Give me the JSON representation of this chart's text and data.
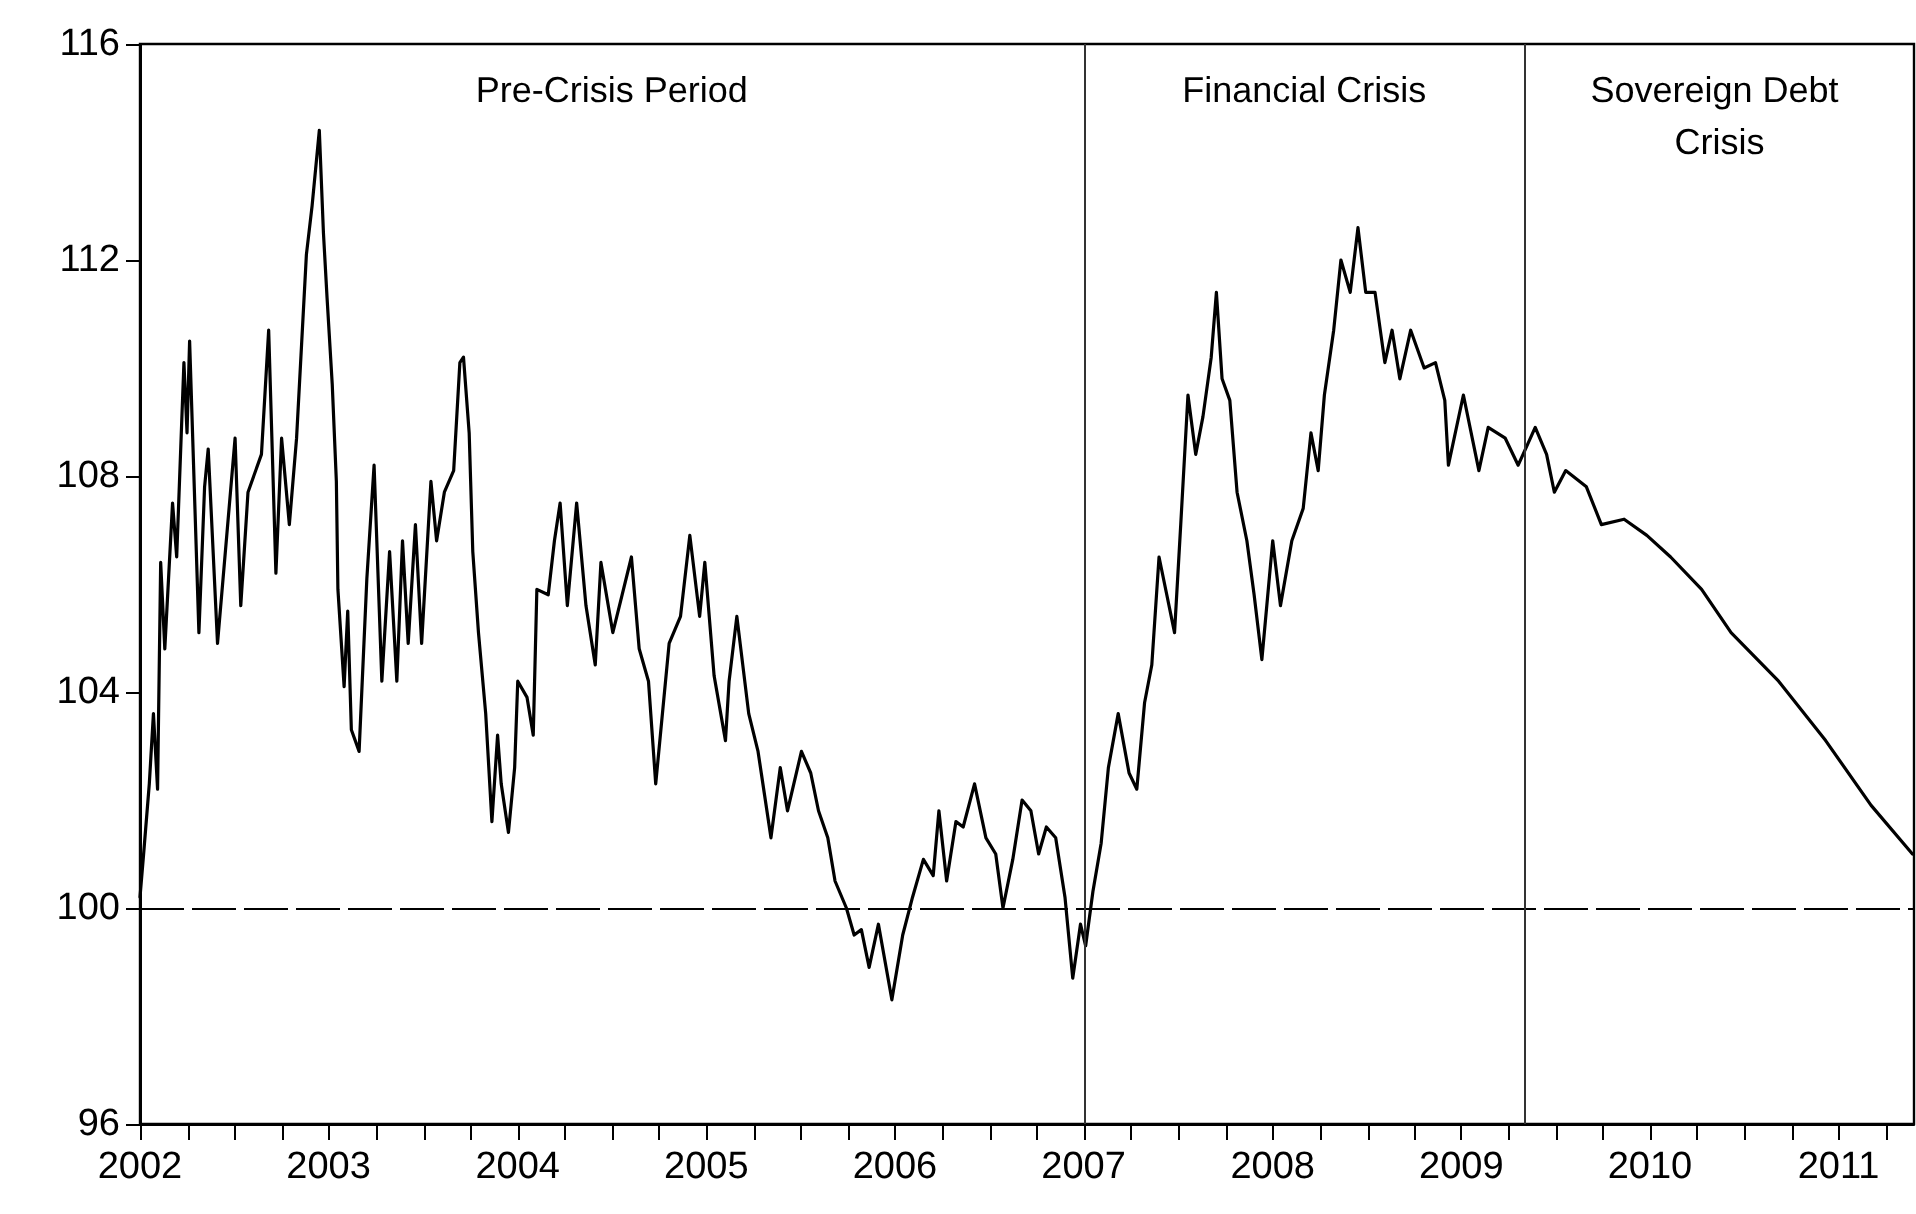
{
  "chart_data": {
    "type": "line",
    "x": [
      "2002-07-01",
      "2002-07-08",
      "2002-07-19",
      "2002-07-27",
      "2002-08-04",
      "2002-08-10",
      "2002-08-18",
      "2002-09-02",
      "2002-09-10",
      "2002-09-24",
      "2002-09-30",
      "2002-10-05",
      "2002-10-23",
      "2002-11-03",
      "2002-11-10",
      "2002-11-28",
      "2003-01-01",
      "2003-01-12",
      "2003-01-26",
      "2003-02-21",
      "2003-03-07",
      "2003-03-21",
      "2003-04-01",
      "2003-04-16",
      "2003-04-30",
      "2003-05-19",
      "2003-05-30",
      "2003-06-13",
      "2003-06-21",
      "2003-06-28",
      "2003-07-08",
      "2003-07-16",
      "2003-07-19",
      "2003-07-31",
      "2003-08-07",
      "2003-08-14",
      "2003-08-29",
      "2003-09-13",
      "2003-09-27",
      "2003-10-12",
      "2003-10-27",
      "2003-11-10",
      "2003-11-21",
      "2003-12-02",
      "2003-12-16",
      "2003-12-28",
      "2004-01-15",
      "2004-01-26",
      "2004-02-10",
      "2004-02-28",
      "2004-03-11",
      "2004-03-18",
      "2004-03-29",
      "2004-04-05",
      "2004-04-16",
      "2004-04-30",
      "2004-05-12",
      "2004-05-23",
      "2004-05-30",
      "2004-06-13",
      "2004-06-25",
      "2004-07-01",
      "2004-07-19",
      "2004-07-31",
      "2004-08-07",
      "2004-08-29",
      "2004-09-10",
      "2004-09-21",
      "2004-10-05",
      "2004-10-23",
      "2004-11-10",
      "2004-11-28",
      "2004-12-09",
      "2005-01-01",
      "2005-01-19",
      "2005-02-06",
      "2005-02-21",
      "2005-03-11",
      "2005-03-25",
      "2005-04-20",
      "2005-05-12",
      "2005-05-30",
      "2005-06-18",
      "2005-06-28",
      "2005-07-16",
      "2005-08-07",
      "2005-08-14",
      "2005-08-29",
      "2005-09-21",
      "2005-10-09",
      "2005-11-03",
      "2005-11-21",
      "2005-12-05",
      "2006-01-01",
      "2006-01-19",
      "2006-02-03",
      "2006-02-21",
      "2006-03-07",
      "2006-03-29",
      "2006-04-13",
      "2006-04-27",
      "2006-05-12",
      "2006-05-30",
      "2006-06-25",
      "2006-07-16",
      "2006-08-04",
      "2006-08-25",
      "2006-09-13",
      "2006-09-24",
      "2006-10-09",
      "2006-10-27",
      "2006-11-10",
      "2006-12-02",
      "2006-12-24",
      "2007-01-12",
      "2007-01-26",
      "2007-02-14",
      "2007-03-04",
      "2007-03-21",
      "2007-04-05",
      "2007-04-20",
      "2007-05-08",
      "2007-05-26",
      "2007-06-10",
      "2007-06-25",
      "2007-07-05",
      "2007-07-19",
      "2007-08-04",
      "2007-08-18",
      "2007-09-06",
      "2007-09-27",
      "2007-10-12",
      "2007-10-27",
      "2007-11-10",
      "2007-11-24",
      "2007-12-09",
      "2007-12-24",
      "2008-01-05",
      "2008-01-19",
      "2008-02-03",
      "2008-02-17",
      "2008-03-04",
      "2008-03-14",
      "2008-03-25",
      "2008-04-09",
      "2008-04-23",
      "2008-05-12",
      "2008-05-26",
      "2008-06-10",
      "2008-07-01",
      "2008-07-16",
      "2008-08-07",
      "2008-08-29",
      "2008-09-13",
      "2008-09-27",
      "2008-10-09",
      "2008-10-27",
      "2008-11-10",
      "2008-11-28",
      "2008-12-13",
      "2008-12-28",
      "2009-01-15",
      "2009-02-03",
      "2009-02-17",
      "2009-03-04",
      "2009-03-25",
      "2009-04-20",
      "2009-05-12",
      "2009-05-30",
      "2009-06-06",
      "2009-07-05",
      "2009-08-04",
      "2009-08-22",
      "2009-09-24",
      "2009-10-19",
      "2009-11-21",
      "2009-12-13",
      "2009-12-28",
      "2010-01-19",
      "2010-02-28",
      "2010-03-29",
      "2010-05-12",
      "2010-06-25",
      "2010-08-10",
      "2010-10-09",
      "2010-12-05",
      "2011-03-07",
      "2011-06-06",
      "2011-09-02",
      "2011-11-21"
    ],
    "series": [
      {
        "color": "#000000",
        "values": [
          100.2,
          101.0,
          102.3,
          103.6,
          102.2,
          106.4,
          104.8,
          107.5,
          106.5,
          110.1,
          108.8,
          110.5,
          105.1,
          107.8,
          108.5,
          104.9,
          108.7,
          105.6,
          107.7,
          108.4,
          110.7,
          106.2,
          108.7,
          107.1,
          108.7,
          112.1,
          113.0,
          114.4,
          112.5,
          111.3,
          109.7,
          107.9,
          105.9,
          104.1,
          105.5,
          103.3,
          102.9,
          106.1,
          108.2,
          104.2,
          106.6,
          104.2,
          106.8,
          104.9,
          107.1,
          104.9,
          107.9,
          106.8,
          107.7,
          108.1,
          110.1,
          110.2,
          108.8,
          106.6,
          105.1,
          103.6,
          101.6,
          103.2,
          102.3,
          101.4,
          102.6,
          104.2,
          103.9,
          103.2,
          105.9,
          105.8,
          106.8,
          107.5,
          105.6,
          107.5,
          105.6,
          104.5,
          106.4,
          105.1,
          105.8,
          106.5,
          104.8,
          104.2,
          102.3,
          104.9,
          105.4,
          106.9,
          105.4,
          106.4,
          104.3,
          103.1,
          104.2,
          105.4,
          103.6,
          102.9,
          101.3,
          102.6,
          101.8,
          102.9,
          102.5,
          101.8,
          101.3,
          100.5,
          100.0,
          99.5,
          99.6,
          98.9,
          99.7,
          98.3,
          99.5,
          100.2,
          100.9,
          100.6,
          101.8,
          100.5,
          101.6,
          101.5,
          102.3,
          101.3,
          101.0,
          100.0,
          100.9,
          102.0,
          101.8,
          101.0,
          101.5,
          101.3,
          100.2,
          98.7,
          99.7,
          99.3,
          100.3,
          101.2,
          102.6,
          103.6,
          102.5,
          102.2,
          103.8,
          104.5,
          106.5,
          105.8,
          105.1,
          107.1,
          109.5,
          108.4,
          109.1,
          110.2,
          111.4,
          109.8,
          109.4,
          107.7,
          106.8,
          105.8,
          104.6,
          106.8,
          105.6,
          106.8,
          107.4,
          108.8,
          108.1,
          109.5,
          110.7,
          112.0,
          111.4,
          112.6,
          111.4,
          111.4,
          110.1,
          110.7,
          109.8,
          110.7,
          110.0,
          110.1,
          109.4,
          108.2,
          109.5,
          108.1,
          108.9,
          108.7,
          108.2,
          108.9,
          108.4,
          107.7,
          108.1,
          107.8,
          107.1,
          107.2,
          106.9,
          106.5,
          105.9,
          105.1,
          104.2,
          103.1,
          101.9,
          101.0
        ]
      }
    ],
    "xlim": [
      "2002-07-01",
      "2011-11-24"
    ],
    "xticks": [
      {
        "value": "2002-07-01",
        "label": "2002"
      },
      {
        "value": "2003-07-01",
        "label": "2003"
      },
      {
        "value": "2004-07-01",
        "label": "2004"
      },
      {
        "value": "2005-07-01",
        "label": "2005"
      },
      {
        "value": "2006-07-01",
        "label": "2006"
      },
      {
        "value": "2007-07-01",
        "label": "2007"
      },
      {
        "value": "2008-07-01",
        "label": "2008"
      },
      {
        "value": "2009-07-01",
        "label": "2009"
      },
      {
        "value": "2010-07-01",
        "label": "2010"
      },
      {
        "value": "2011-07-01",
        "label": "2011"
      },
      {
        "value": "2002-10-01",
        "label": null
      },
      {
        "value": "2003-01-01",
        "label": null
      },
      {
        "value": "2003-04-01",
        "label": null
      },
      {
        "value": "2003-10-01",
        "label": null
      },
      {
        "value": "2004-01-01",
        "label": null
      },
      {
        "value": "2004-04-01",
        "label": null
      },
      {
        "value": "2004-10-01",
        "label": null
      },
      {
        "value": "2005-01-01",
        "label": null
      },
      {
        "value": "2005-04-01",
        "label": null
      },
      {
        "value": "2005-10-01",
        "label": null
      },
      {
        "value": "2006-01-01",
        "label": null
      },
      {
        "value": "2006-04-01",
        "label": null
      },
      {
        "value": "2006-10-01",
        "label": null
      },
      {
        "value": "2007-01-01",
        "label": null
      },
      {
        "value": "2007-04-01",
        "label": null
      },
      {
        "value": "2007-10-01",
        "label": null
      },
      {
        "value": "2008-01-01",
        "label": null
      },
      {
        "value": "2008-04-01",
        "label": null
      },
      {
        "value": "2008-10-01",
        "label": null
      },
      {
        "value": "2009-01-01",
        "label": null
      },
      {
        "value": "2009-04-01",
        "label": null
      },
      {
        "value": "2009-10-01",
        "label": null
      },
      {
        "value": "2010-01-01",
        "label": null
      },
      {
        "value": "2010-04-01",
        "label": null
      },
      {
        "value": "2010-10-01",
        "label": null
      },
      {
        "value": "2011-01-01",
        "label": null
      },
      {
        "value": "2011-04-01",
        "label": null
      },
      {
        "value": "2011-10-01",
        "label": null
      }
    ],
    "ylim": [
      96,
      116
    ],
    "yticks": [
      96,
      100,
      104,
      108,
      112,
      116
    ],
    "grid": false,
    "marker": "none",
    "line_style": "solid",
    "ref_lines": [
      {
        "axis": "y",
        "value": 100,
        "color": "#000000",
        "line_style": "dashed"
      },
      {
        "axis": "x",
        "value": "2007-07-01",
        "color": "#333333",
        "line_style": "solid"
      },
      {
        "axis": "x",
        "value": "2009-11-01",
        "color": "#333333",
        "line_style": "solid"
      }
    ],
    "annotations": [
      "Pre-Crisis Period",
      "Financial Crisis",
      "Sovereign Debt Crisis"
    ]
  }
}
